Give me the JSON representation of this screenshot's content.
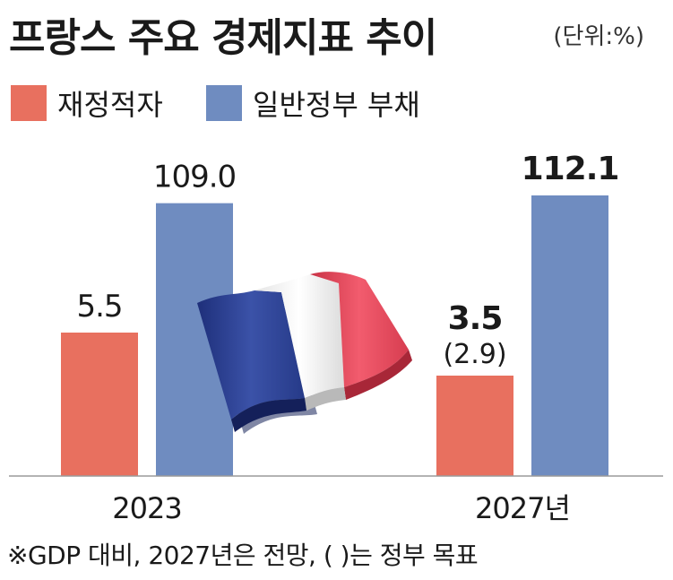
{
  "title": "프랑스 주요 경제지표 추이",
  "unit": "(단위:%)",
  "footnote": "※GDP 대비, 2027년은 전망, (    )는 정부 목표",
  "colors": {
    "deficit": "#e8705f",
    "debt": "#6f8cc0",
    "flag_blue": "#2a3e8f",
    "flag_white": "#f3f3f3",
    "flag_red": "#e0475a"
  },
  "chart_data": {
    "type": "bar",
    "categories": [
      "2023",
      "2027년"
    ],
    "series": [
      {
        "name": "재정적자",
        "values": [
          5.5,
          3.5
        ],
        "labels": [
          "5.5",
          "3.5"
        ]
      },
      {
        "name": "일반정부 부채",
        "values": [
          109.0,
          112.1
        ],
        "labels": [
          "109.0",
          "112.1"
        ]
      }
    ],
    "secondary_label": {
      "category": "2027년",
      "series": "재정적자",
      "value": 2.9,
      "text": "(2.9)"
    },
    "legend_position": "top-left",
    "grid": false,
    "note": "bar heights are not drawn to a linear scale"
  }
}
